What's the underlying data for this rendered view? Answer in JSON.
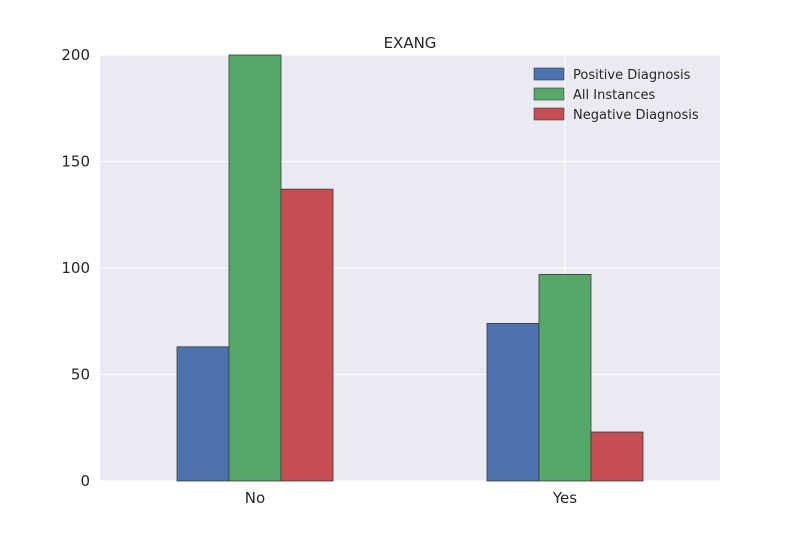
{
  "chart_data": {
    "type": "bar",
    "title": "EXANG",
    "xlabel": "",
    "ylabel": "",
    "categories": [
      "No",
      "Yes"
    ],
    "series": [
      {
        "name": "Positive Diagnosis",
        "values": [
          63,
          74
        ],
        "color": "#4c72b0"
      },
      {
        "name": "All Instances",
        "values": [
          200,
          97
        ],
        "color": "#55a868"
      },
      {
        "name": "Negative Diagnosis",
        "values": [
          137,
          23
        ],
        "color": "#c44e52"
      }
    ],
    "ylim": [
      0,
      200
    ],
    "yticks": [
      0,
      50,
      100,
      150,
      200
    ],
    "grid": true,
    "legend_position": "top-right",
    "background_color": "#eaeaf2"
  }
}
